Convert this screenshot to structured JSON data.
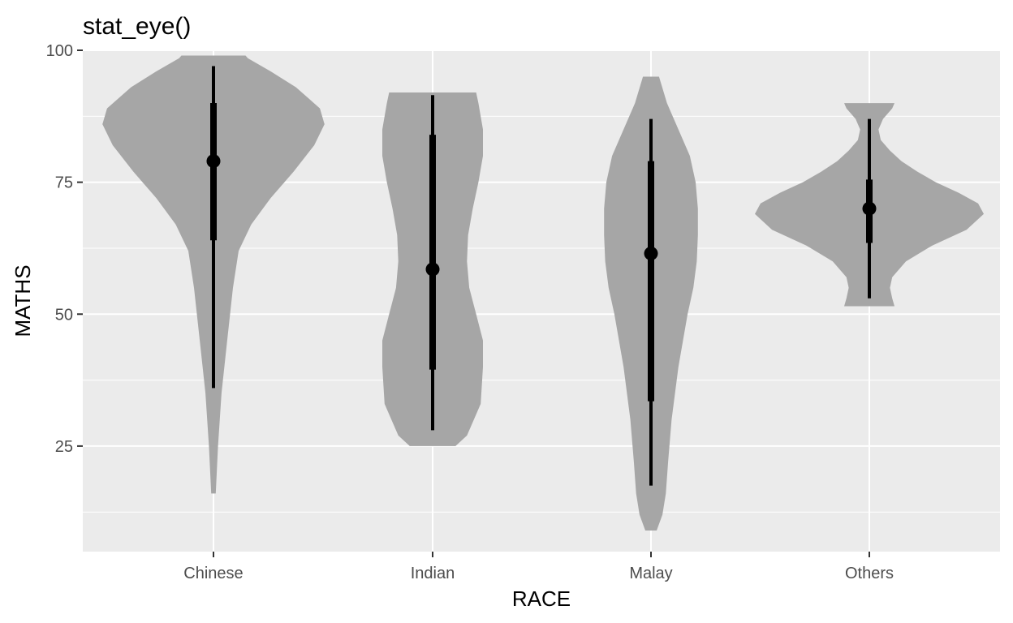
{
  "chart_data": {
    "type": "violin",
    "title": "stat_eye()",
    "xlabel": "RACE",
    "ylabel": "MATHS",
    "categories": [
      "Chinese",
      "Indian",
      "Malay",
      "Others"
    ],
    "ylim": [
      5,
      100
    ],
    "yticks": [
      25,
      50,
      75,
      100
    ],
    "grid": true,
    "legend": "none",
    "colors": {
      "panel": "#ebebeb",
      "grid": "#ffffff",
      "violin": "#a6a6a6",
      "interval": "#000000",
      "tick_text": "#4d4d4d"
    },
    "series": [
      {
        "category": "Chinese",
        "median": 79,
        "interval_66": [
          64,
          90
        ],
        "interval_95": [
          36,
          97
        ],
        "range": [
          16,
          99
        ],
        "density": [
          [
            16,
            0.02
          ],
          [
            25,
            0.04
          ],
          [
            35,
            0.07
          ],
          [
            45,
            0.12
          ],
          [
            55,
            0.17
          ],
          [
            62,
            0.22
          ],
          [
            67,
            0.33
          ],
          [
            72,
            0.5
          ],
          [
            77,
            0.7
          ],
          [
            82,
            0.88
          ],
          [
            86,
            0.97
          ],
          [
            89,
            0.93
          ],
          [
            93,
            0.72
          ],
          [
            96,
            0.5
          ],
          [
            98.5,
            0.3
          ],
          [
            99,
            0.28
          ]
        ]
      },
      {
        "category": "Indian",
        "median": 58.5,
        "interval_66": [
          39.5,
          84
        ],
        "interval_95": [
          28,
          91.5
        ],
        "range": [
          25,
          92
        ],
        "density": [
          [
            25,
            0.2
          ],
          [
            27,
            0.3
          ],
          [
            33,
            0.42
          ],
          [
            40,
            0.44
          ],
          [
            45,
            0.44
          ],
          [
            50,
            0.38
          ],
          [
            55,
            0.32
          ],
          [
            60,
            0.3
          ],
          [
            65,
            0.31
          ],
          [
            70,
            0.35
          ],
          [
            75,
            0.4
          ],
          [
            80,
            0.44
          ],
          [
            85,
            0.44
          ],
          [
            90,
            0.4
          ],
          [
            92,
            0.38
          ]
        ]
      },
      {
        "category": "Malay",
        "median": 61.5,
        "interval_66": [
          33.5,
          79
        ],
        "interval_95": [
          17.5,
          87
        ],
        "range": [
          9,
          95
        ],
        "density": [
          [
            9,
            0.05
          ],
          [
            12,
            0.1
          ],
          [
            16,
            0.13
          ],
          [
            22,
            0.15
          ],
          [
            30,
            0.18
          ],
          [
            40,
            0.24
          ],
          [
            50,
            0.32
          ],
          [
            55,
            0.37
          ],
          [
            60,
            0.4
          ],
          [
            65,
            0.41
          ],
          [
            70,
            0.41
          ],
          [
            75,
            0.39
          ],
          [
            80,
            0.34
          ],
          [
            85,
            0.24
          ],
          [
            90,
            0.14
          ],
          [
            95,
            0.07
          ]
        ]
      },
      {
        "category": "Others",
        "median": 70,
        "interval_66": [
          63.5,
          75.5
        ],
        "interval_95": [
          53,
          87
        ],
        "range": [
          51.5,
          90
        ],
        "density": [
          [
            51.5,
            0.22
          ],
          [
            53,
            0.2
          ],
          [
            55,
            0.18
          ],
          [
            57,
            0.2
          ],
          [
            60,
            0.32
          ],
          [
            63,
            0.55
          ],
          [
            66,
            0.85
          ],
          [
            69,
            1.0
          ],
          [
            71,
            0.95
          ],
          [
            73,
            0.78
          ],
          [
            75,
            0.58
          ],
          [
            77,
            0.42
          ],
          [
            79,
            0.28
          ],
          [
            81,
            0.18
          ],
          [
            83,
            0.1
          ],
          [
            85,
            0.08
          ],
          [
            87,
            0.12
          ],
          [
            89,
            0.2
          ],
          [
            90,
            0.22
          ]
        ]
      }
    ]
  }
}
